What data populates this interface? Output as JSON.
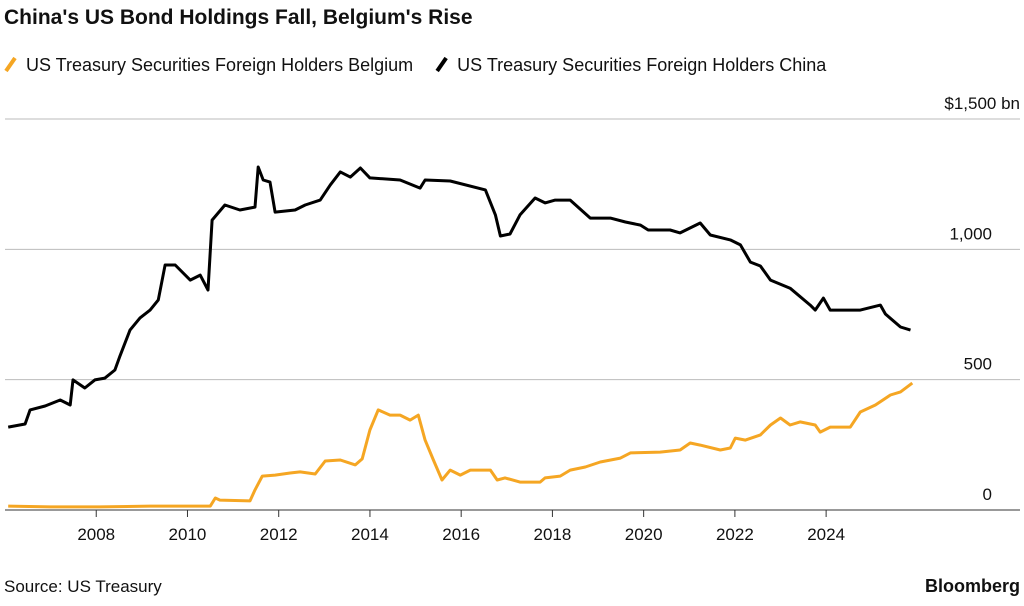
{
  "chart_data": {
    "type": "line",
    "title": "China's US Bond Holdings Fall, Belgium's Rise",
    "source": "Source: US Treasury",
    "credit": "Bloomberg",
    "xlim": [
      2006,
      2028.25
    ],
    "xticks": [
      2008,
      2010,
      2012,
      2014,
      2016,
      2018,
      2020,
      2022,
      2024
    ],
    "ylim": [
      0,
      1500
    ],
    "yticks": [
      0,
      500,
      {
        "value": 1000,
        "label": "1,000"
      },
      {
        "value": 1500,
        "label": "$1,500 bn"
      }
    ],
    "grid": true,
    "series": [
      {
        "name": "US Treasury Securities Foreign Holders Belgium",
        "color": "#f5a623",
        "x": [
          2006.07,
          2006.99,
          2008.08,
          2009.18,
          2010.5,
          2010.61,
          2010.71,
          2011.37,
          2011.48,
          2011.64,
          2011.92,
          2012.25,
          2012.47,
          2012.8,
          2013.02,
          2013.35,
          2013.68,
          2013.83,
          2014.0,
          2014.18,
          2014.44,
          2014.66,
          2014.88,
          2015.06,
          2015.21,
          2015.39,
          2015.58,
          2015.76,
          2015.98,
          2016.2,
          2016.64,
          2016.79,
          2016.96,
          2017.29,
          2017.73,
          2017.84,
          2018.17,
          2018.39,
          2018.72,
          2019.05,
          2019.49,
          2019.71,
          2020.36,
          2020.8,
          2021.02,
          2021.24,
          2021.68,
          2021.9,
          2022.01,
          2022.23,
          2022.56,
          2022.78,
          2023.0,
          2023.21,
          2023.43,
          2023.76,
          2023.87,
          2024.09,
          2024.53,
          2024.75,
          2025.08,
          2025.41,
          2025.63,
          2025.89
        ],
        "values": [
          15,
          12,
          12,
          15,
          15,
          46,
          38,
          35,
          77,
          130,
          134,
          142,
          146,
          138,
          188,
          192,
          173,
          196,
          307,
          384,
          364,
          364,
          345,
          364,
          268,
          192,
          115,
          153,
          134,
          153,
          153,
          115,
          123,
          107,
          107,
          123,
          130,
          153,
          165,
          184,
          199,
          219,
          222,
          230,
          257,
          249,
          230,
          238,
          276,
          268,
          288,
          326,
          353,
          326,
          338,
          326,
          299,
          318,
          318,
          376,
          403,
          441,
          453,
          487
        ]
      },
      {
        "name": "US Treasury Securities Foreign Holders China",
        "color": "#000000",
        "x": [
          2006.07,
          2006.44,
          2006.55,
          2006.88,
          2007.21,
          2007.43,
          2007.49,
          2007.75,
          2007.97,
          2008.19,
          2008.41,
          2008.52,
          2008.74,
          2008.96,
          2009.18,
          2009.36,
          2009.51,
          2009.73,
          2010.06,
          2010.28,
          2010.45,
          2010.54,
          2010.82,
          2011.15,
          2011.48,
          2011.55,
          2011.66,
          2011.81,
          2011.92,
          2012.36,
          2012.58,
          2012.91,
          2013.13,
          2013.35,
          2013.57,
          2013.79,
          2014.0,
          2014.66,
          2015.1,
          2015.21,
          2015.76,
          2016.53,
          2016.75,
          2016.86,
          2017.07,
          2017.29,
          2017.62,
          2017.84,
          2018.06,
          2018.39,
          2018.83,
          2019.27,
          2019.6,
          2019.93,
          2020.1,
          2020.58,
          2020.8,
          2021.24,
          2021.46,
          2021.9,
          2022.12,
          2022.34,
          2022.56,
          2022.78,
          2023.21,
          2023.65,
          2023.76,
          2023.94,
          2024.09,
          2024.75,
          2025.19,
          2025.3,
          2025.63,
          2025.85
        ],
        "values": [
          318,
          330,
          384,
          399,
          422,
          403,
          499,
          468,
          499,
          506,
          537,
          591,
          690,
          737,
          767,
          806,
          940,
          940,
          882,
          901,
          844,
          1112,
          1170,
          1151,
          1162,
          1316,
          1266,
          1258,
          1143,
          1151,
          1170,
          1189,
          1247,
          1297,
          1277,
          1312,
          1274,
          1266,
          1235,
          1266,
          1262,
          1228,
          1132,
          1051,
          1059,
          1132,
          1197,
          1178,
          1189,
          1189,
          1120,
          1120,
          1105,
          1093,
          1074,
          1074,
          1063,
          1101,
          1055,
          1036,
          1017,
          951,
          936,
          882,
          851,
          786,
          767,
          813,
          767,
          767,
          786,
          752,
          702,
          690
        ]
      }
    ]
  }
}
